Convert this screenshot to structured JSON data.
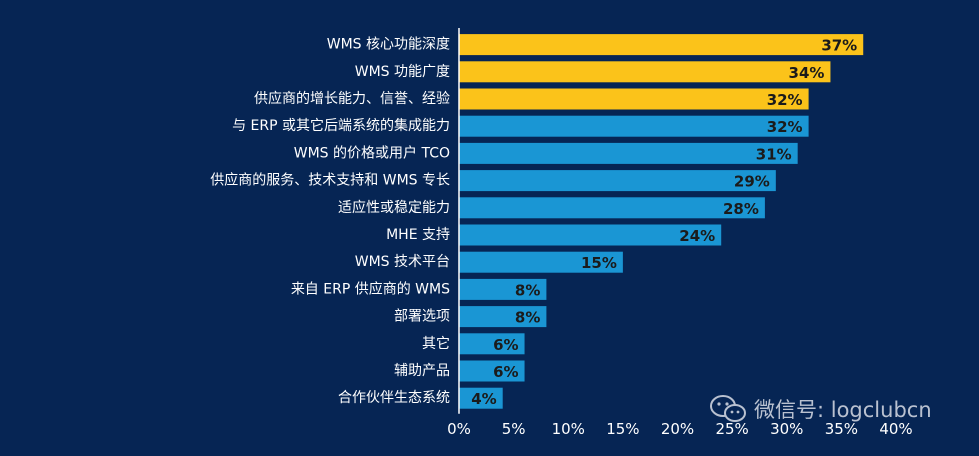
{
  "chart_data": {
    "type": "bar",
    "orientation": "horizontal",
    "categories": [
      "WMS 核心功能深度",
      "WMS 功能广度",
      "供应商的增长能力、信誉、经验",
      "与 ERP 或其它后端系统的集成能力",
      "WMS 的价格或用户 TCO",
      "供应商的服务、技术支持和 WMS 专长",
      "适应性或稳定能力",
      "MHE 支持",
      "WMS 技术平台",
      "来自 ERP 供应商的 WMS",
      "部署选项",
      "其它",
      "辅助产品",
      "合作伙伴生态系统"
    ],
    "values": [
      37,
      34,
      32,
      32,
      31,
      29,
      28,
      24,
      15,
      8,
      8,
      6,
      6,
      4
    ],
    "value_labels": [
      "37%",
      "34%",
      "32%",
      "32%",
      "31%",
      "29%",
      "28%",
      "24%",
      "15%",
      "8%",
      "8%",
      "6%",
      "6%",
      "4%"
    ],
    "highlight": [
      true,
      true,
      true,
      false,
      false,
      false,
      false,
      false,
      false,
      false,
      false,
      false,
      false,
      false
    ],
    "xlim": [
      0,
      40
    ],
    "xticks": [
      "0%",
      "5%",
      "10%",
      "15%",
      "20%",
      "25%",
      "30%",
      "35%",
      "40%"
    ],
    "grid": false,
    "colors": {
      "highlight": "#fbc31a",
      "default": "#1a96d4",
      "background": "#062554",
      "axis": "#ffffff"
    }
  },
  "watermark": {
    "icon": "wechat-icon",
    "text": "微信号: logclubcn"
  }
}
